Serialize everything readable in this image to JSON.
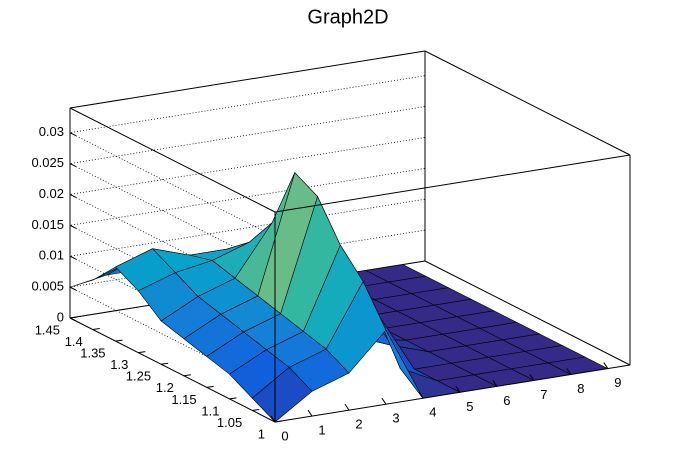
{
  "chart_data": {
    "type": "surface",
    "title": "Graph2D",
    "x": [
      0,
      1,
      2,
      3,
      4,
      5,
      6,
      7,
      8,
      9
    ],
    "y": [
      1,
      1.05,
      1.1,
      1.15,
      1.2,
      1.25,
      1.3,
      1.35,
      1.4,
      1.45
    ],
    "z": [
      [
        0,
        0.004,
        0.006,
        0.012,
        0,
        0,
        0,
        0,
        0,
        0
      ],
      [
        0.002,
        0.006,
        0.008,
        0.018,
        0.003,
        0,
        0,
        0,
        0,
        0
      ],
      [
        0.004,
        0.007,
        0.009,
        0.022,
        0.01,
        0,
        0,
        0,
        0,
        0
      ],
      [
        0.005,
        0.008,
        0.01,
        0.028,
        0.012,
        0.002,
        0,
        0,
        0,
        0
      ],
      [
        0.006,
        0.009,
        0.011,
        0.03,
        0.008,
        0.001,
        0,
        0,
        0,
        0
      ],
      [
        0.007,
        0.01,
        0.012,
        0.02,
        0.005,
        0,
        0,
        0,
        0,
        0
      ],
      [
        0.01,
        0.012,
        0.013,
        0.015,
        0.004,
        0,
        0,
        0,
        0,
        0
      ],
      [
        0.012,
        0.014,
        0.012,
        0.012,
        0.003,
        0,
        0,
        0,
        0,
        0
      ],
      [
        0.008,
        0.01,
        0.009,
        0.008,
        0.002,
        0,
        0,
        0,
        0,
        0
      ],
      [
        0.005,
        0.006,
        0.006,
        0.005,
        0.001,
        0,
        0,
        0,
        0,
        0
      ]
    ],
    "xlim": [
      0,
      9.6
    ],
    "ylim": [
      1,
      1.45
    ],
    "zlim": [
      0,
      0.034
    ],
    "xticks": [
      0,
      1,
      2,
      3,
      4,
      5,
      6,
      7,
      8,
      9
    ],
    "yticks": [
      1,
      1.05,
      1.1,
      1.15,
      1.2,
      1.25,
      1.3,
      1.35,
      1.4,
      1.45
    ],
    "zticks": [
      0,
      0.005,
      0.01,
      0.015,
      0.02,
      0.025,
      0.03
    ],
    "grid": true,
    "colors": [
      "#352a87",
      "#0f5cdd",
      "#1481d6",
      "#06a4ca",
      "#2eb7a4",
      "#87bf77",
      "#d1bb59",
      "#fec832",
      "#f9fb0e"
    ]
  }
}
